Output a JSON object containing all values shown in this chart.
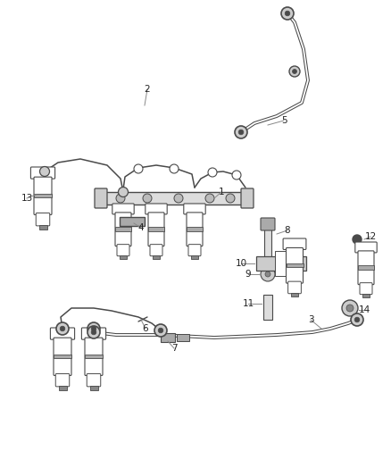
{
  "bg_color": "#ffffff",
  "line_color": "#4a4a4a",
  "lc_gray": "#888888",
  "label_color": "#222222",
  "label_fs": 7.5,
  "fig_w": 4.38,
  "fig_h": 5.33,
  "dpi": 100
}
